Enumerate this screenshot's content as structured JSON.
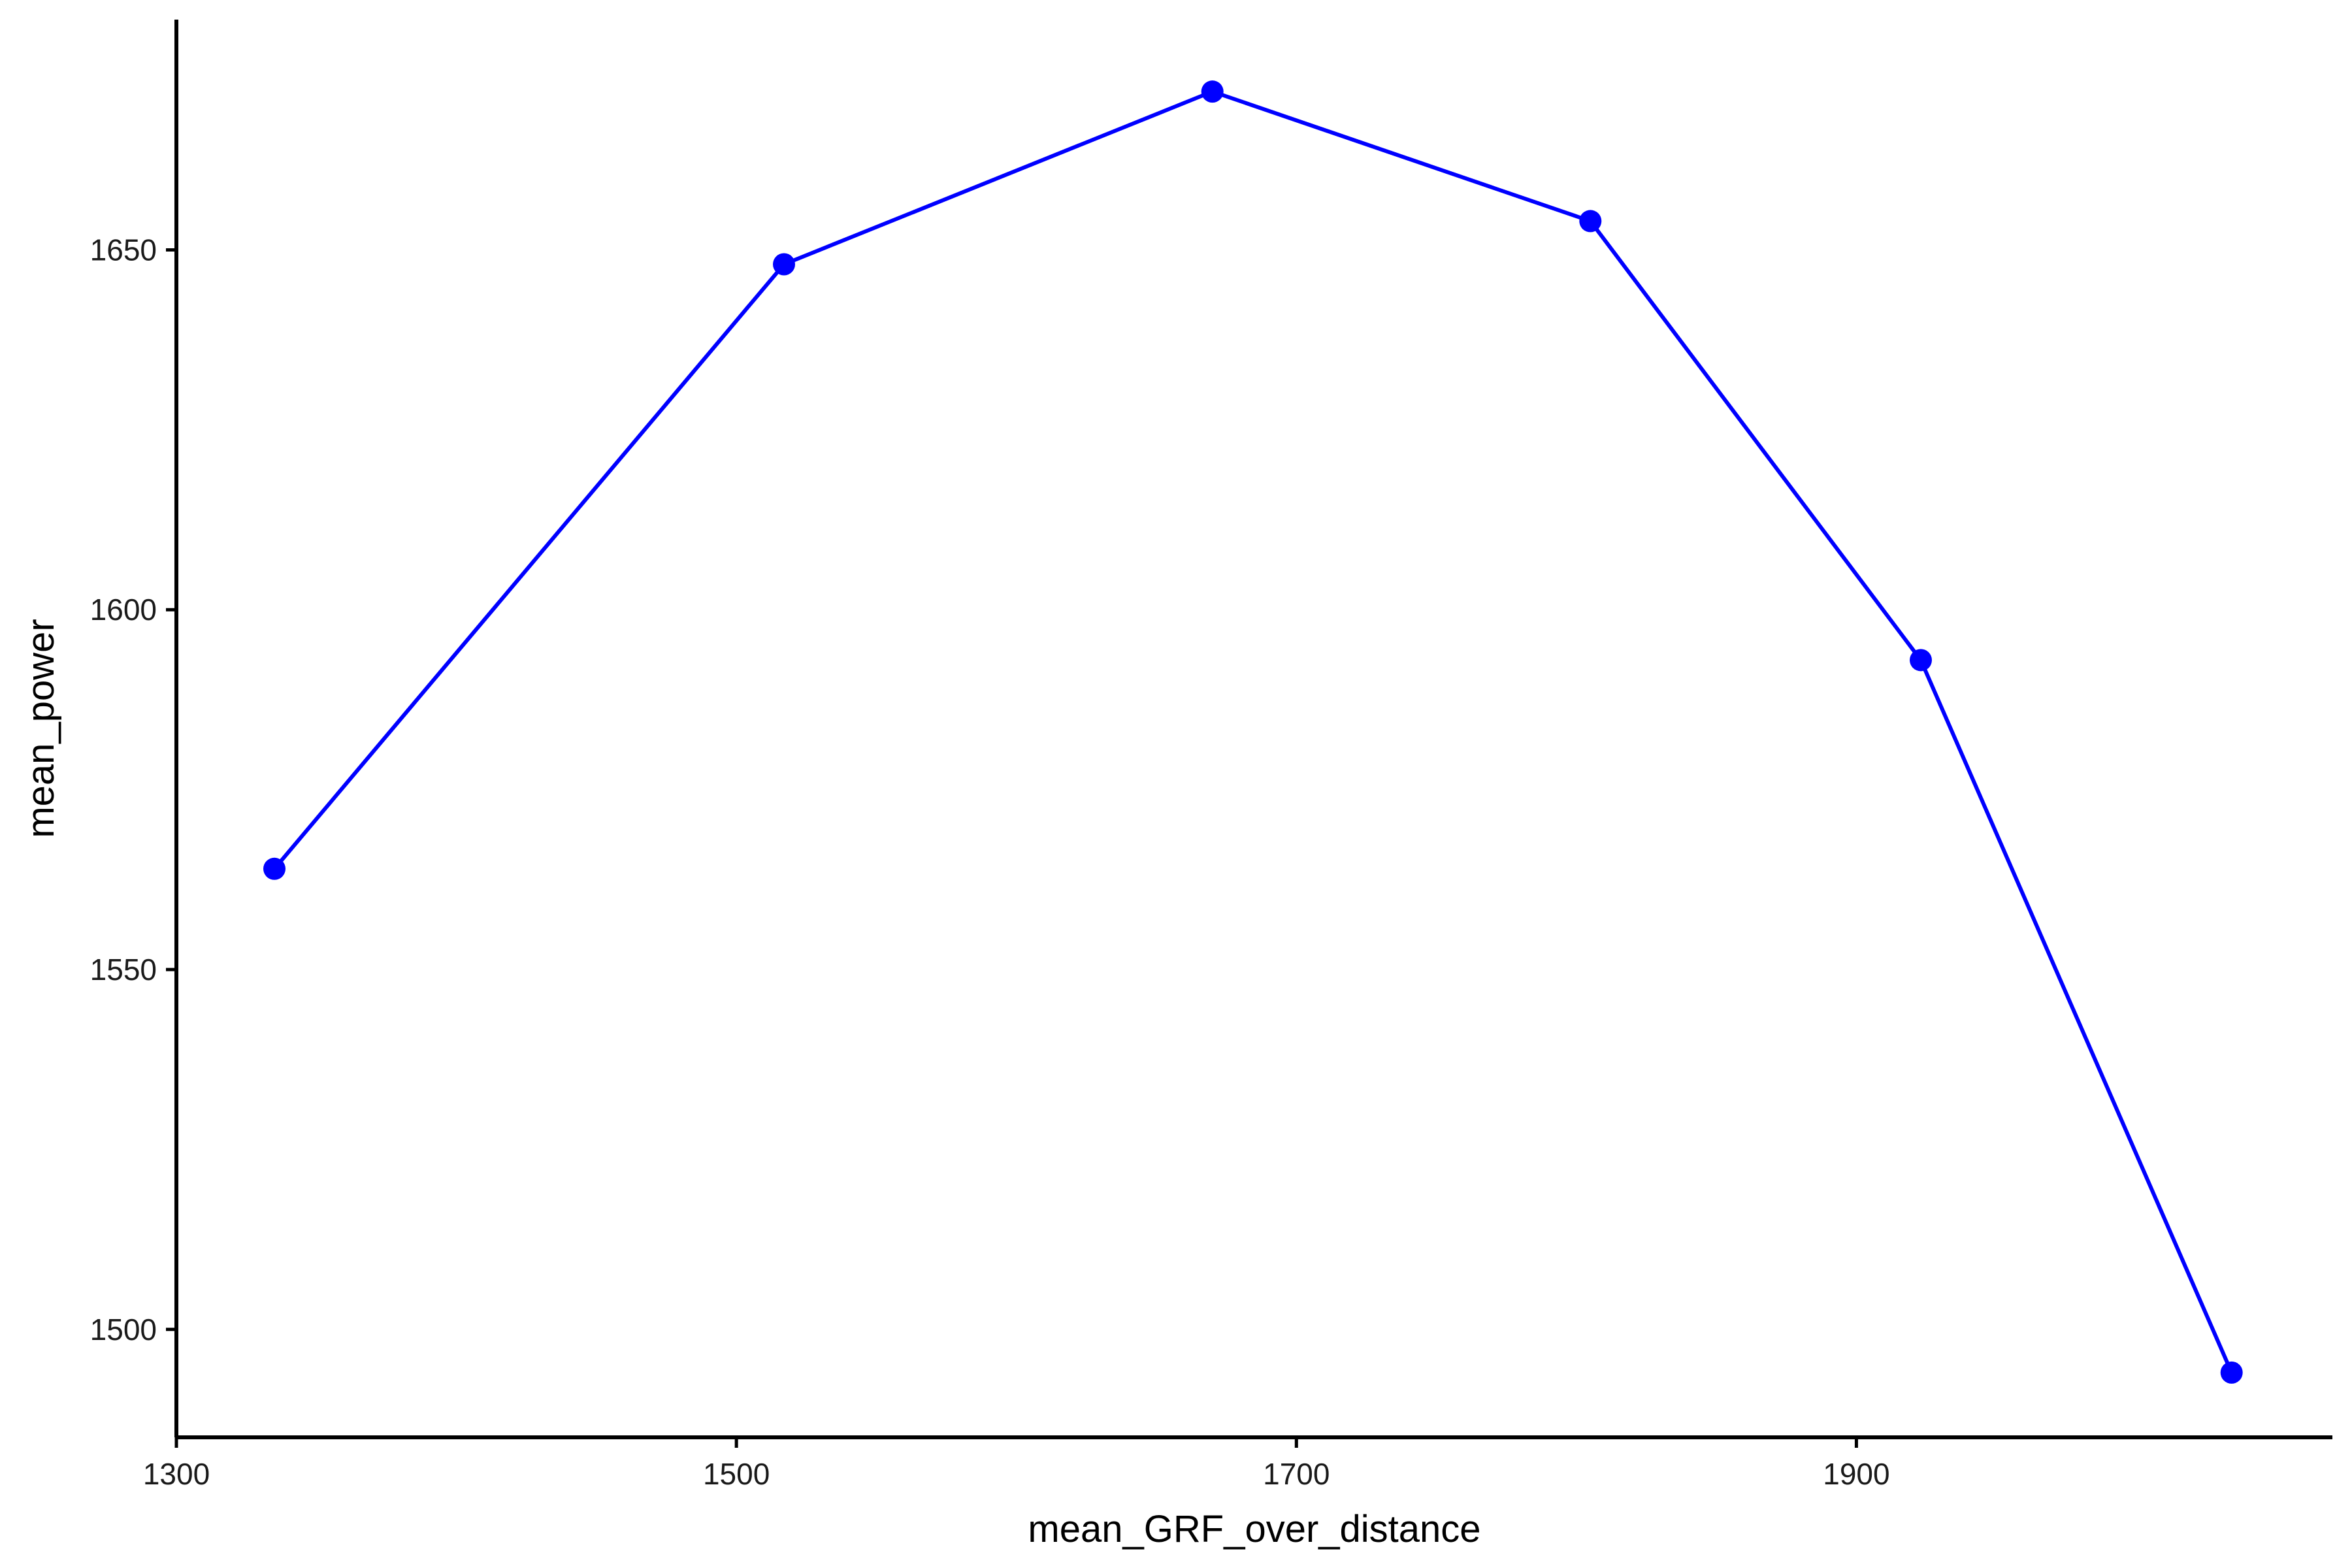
{
  "chart_data": {
    "type": "line",
    "title": "",
    "xlabel": "mean_GRF_over_distance",
    "ylabel": "mean_power",
    "xlim": [
      1300,
      2070
    ],
    "ylim": [
      1485,
      1682
    ],
    "x_ticks": [
      1300,
      1500,
      1700,
      1900
    ],
    "y_ticks": [
      1500,
      1550,
      1600,
      1650
    ],
    "grid": false,
    "legend": "none",
    "series": [
      {
        "color": "#0000ff",
        "points": [
          {
            "x": 1335,
            "y": 1564
          },
          {
            "x": 1517,
            "y": 1648
          },
          {
            "x": 1670,
            "y": 1672
          },
          {
            "x": 1805,
            "y": 1654
          },
          {
            "x": 1923,
            "y": 1593
          },
          {
            "x": 2034,
            "y": 1494
          }
        ]
      }
    ]
  }
}
